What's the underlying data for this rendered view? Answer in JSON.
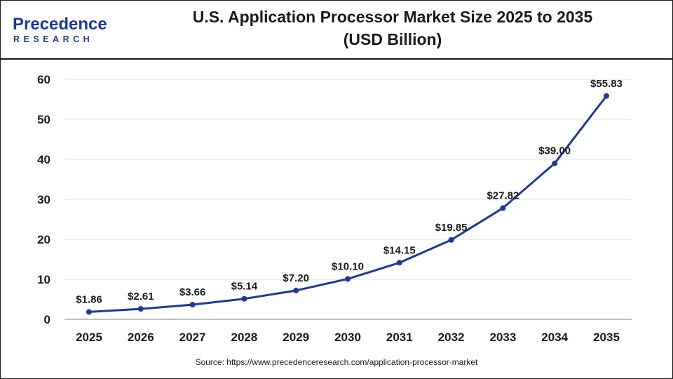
{
  "logo": {
    "brand": "Precedence",
    "sub": "RESEARCH"
  },
  "title_line1": "U.S. Application Processor Market Size 2025 to 2035",
  "title_line2": "(USD Billion)",
  "source": "Source: https://www.precedenceresearch.com/application-processor-market",
  "colors": {
    "line": "#1f3a93",
    "grid": "#e2e2e2",
    "text": "#1a1a1a",
    "logo_blue": "#1f3a93"
  },
  "chart_data": {
    "type": "line",
    "title": "U.S. Application Processor Market Size 2025 to 2035 (USD Billion)",
    "xlabel": "",
    "ylabel": "",
    "categories": [
      "2025",
      "2026",
      "2027",
      "2028",
      "2029",
      "2030",
      "2031",
      "2032",
      "2033",
      "2034",
      "2035"
    ],
    "series": [
      {
        "values": [
          1.86,
          2.61,
          3.66,
          5.14,
          7.2,
          10.1,
          14.15,
          19.85,
          27.82,
          39.0,
          55.83
        ]
      }
    ],
    "data_labels": [
      "$1.86",
      "$2.61",
      "$3.66",
      "$5.14",
      "$7.20",
      "$10.10",
      "$14.15",
      "$19.85",
      "$27.82",
      "$39.00",
      "$55.83"
    ],
    "ylim": [
      0,
      60
    ],
    "yticks": [
      0,
      10,
      20,
      30,
      40,
      50,
      60
    ],
    "grid": true,
    "legend": "none"
  }
}
